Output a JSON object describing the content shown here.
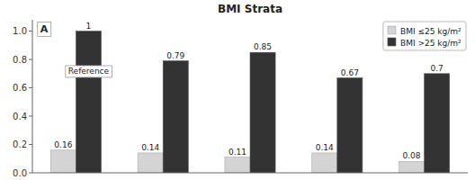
{
  "chart_data": {
    "type": "bar",
    "title": "BMI Strata",
    "categories": [
      null,
      null,
      null,
      null,
      null
    ],
    "series": [
      {
        "name": "BMI ≤25 kg/m²",
        "color": "#d4d4d4",
        "values": [
          0.16,
          0.14,
          0.11,
          0.14,
          0.08
        ]
      },
      {
        "name": "BMI >25 kg/m²",
        "color": "#333333",
        "values": [
          1,
          0.79,
          0.85,
          0.67,
          0.7
        ]
      }
    ],
    "ylim": [
      0,
      1.08
    ],
    "yticks": [
      {
        "value": 0,
        "label": "0.0"
      },
      0.2,
      0.4,
      0.6,
      0.8,
      {
        "value": 1.0,
        "label": "1.0"
      }
    ],
    "annotations": [
      "A",
      "Reference"
    ],
    "data_labels": true,
    "legend": "upper right",
    "grid": false,
    "tick_labels": "y"
  }
}
